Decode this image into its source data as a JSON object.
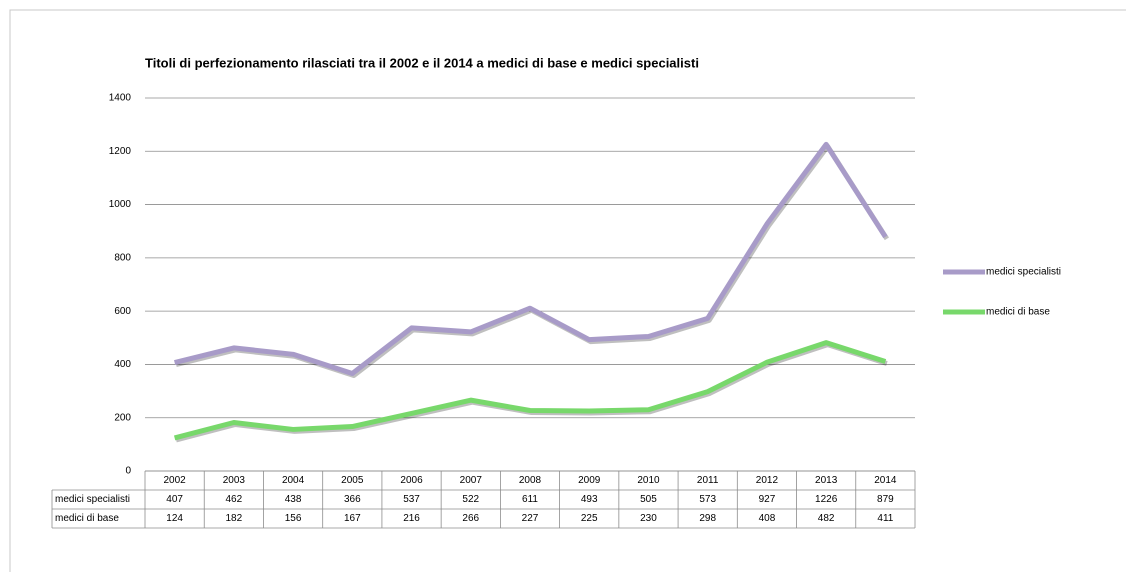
{
  "chart_data": {
    "type": "line",
    "title": "Titoli di perfezionamento rilasciati tra il 2002 e il 2014 a medici di base e medici specialisti",
    "categories": [
      "2002",
      "2003",
      "2004",
      "2005",
      "2006",
      "2007",
      "2008",
      "2009",
      "2010",
      "2011",
      "2012",
      "2013",
      "2014"
    ],
    "series": [
      {
        "name": "medici specialisti",
        "color": "#a89bc8",
        "values": [
          407,
          462,
          438,
          366,
          537,
          522,
          611,
          493,
          505,
          573,
          927,
          1226,
          879
        ]
      },
      {
        "name": "medici di base",
        "color": "#78d86b",
        "values": [
          124,
          182,
          156,
          167,
          216,
          266,
          227,
          225,
          230,
          298,
          408,
          482,
          411
        ]
      }
    ],
    "ylim": [
      0,
      1400
    ],
    "yticks": [
      0,
      200,
      400,
      600,
      800,
      1000,
      1200,
      1400
    ],
    "grid": true,
    "legend": "right"
  }
}
